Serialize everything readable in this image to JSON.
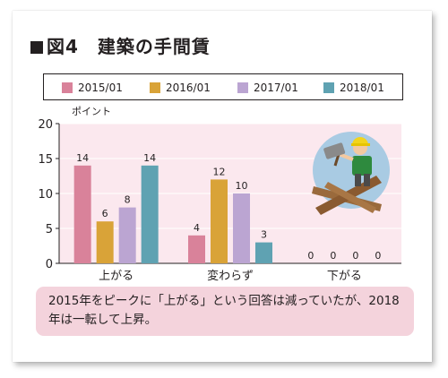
{
  "figure": {
    "title": "図4　建築の手間賃",
    "unit_label": "ポイント",
    "note": "2015年をピークに「上がる」という回答は減っていたが、2018年は一転して上昇。"
  },
  "icons": {
    "illustration": "worker-with-hammer-icon"
  },
  "chart_data": {
    "type": "bar",
    "categories": [
      "上がる",
      "変わらず",
      "下がる"
    ],
    "series": [
      {
        "name": "2015/01",
        "color": "#d9829a",
        "values": [
          14,
          4,
          0
        ]
      },
      {
        "name": "2016/01",
        "color": "#d9a338",
        "values": [
          6,
          12,
          0
        ]
      },
      {
        "name": "2017/01",
        "color": "#bba5d2",
        "values": [
          8,
          10,
          0
        ]
      },
      {
        "name": "2018/01",
        "color": "#5fa2b2",
        "values": [
          14,
          3,
          0
        ]
      }
    ],
    "ylim": [
      0,
      20
    ],
    "yticks": [
      0,
      5,
      10,
      15,
      20
    ],
    "ylabel": "ポイント",
    "plot_background": "#fbe8ee",
    "legend_position": "top"
  }
}
